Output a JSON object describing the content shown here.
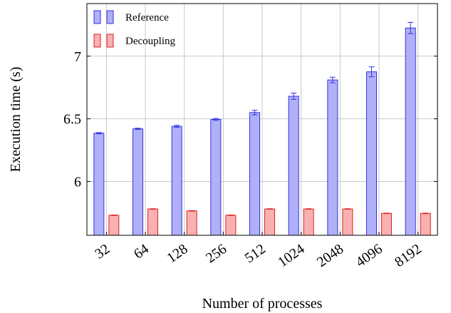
{
  "chart_data": {
    "type": "bar",
    "title": "",
    "xlabel": "Number of processes",
    "ylabel": "Execution time (s)",
    "categories": [
      "32",
      "64",
      "128",
      "256",
      "512",
      "1024",
      "2048",
      "4096",
      "8192"
    ],
    "ylim": [
      5.57,
      7.42
    ],
    "yticks": [
      6,
      6.5,
      7
    ],
    "grid": true,
    "legend_position": "top-left",
    "series": [
      {
        "name": "Reference",
        "values": [
          6.385,
          6.42,
          6.44,
          6.495,
          6.55,
          6.68,
          6.81,
          6.875,
          7.225
        ],
        "errors": [
          0.005,
          0.005,
          0.008,
          0.008,
          0.018,
          0.025,
          0.022,
          0.04,
          0.045
        ],
        "fill": "#b0b0f8",
        "stroke": "#3333dd"
      },
      {
        "name": "Decoupling",
        "values": [
          5.73,
          5.78,
          5.765,
          5.73,
          5.78,
          5.78,
          5.78,
          5.745,
          5.745
        ],
        "errors": [
          0.002,
          0.002,
          0.002,
          0.002,
          0.002,
          0.002,
          0.002,
          0.002,
          0.002
        ],
        "fill": "#f8b0b0",
        "stroke": "#dd2222"
      }
    ]
  }
}
